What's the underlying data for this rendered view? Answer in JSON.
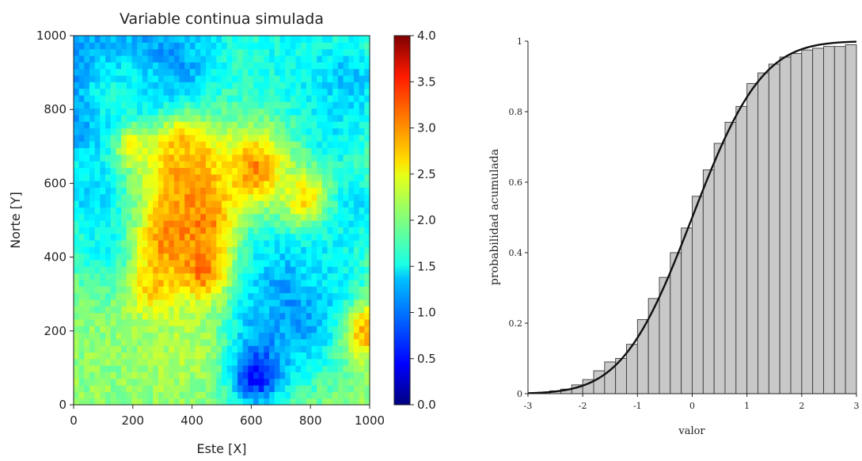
{
  "chart_data": [
    {
      "type": "heatmap",
      "title": "Variable continua simulada",
      "xlabel": "Este [X]",
      "ylabel": "Norte [Y]",
      "xlim": [
        0,
        1000
      ],
      "ylim": [
        0,
        1000
      ],
      "x_ticks": [
        "0",
        "200",
        "400",
        "600",
        "800",
        "1000"
      ],
      "y_ticks": [
        "0",
        "200",
        "400",
        "600",
        "800",
        "1000"
      ],
      "colorbar": {
        "colormap": "jet",
        "range": [
          0.0,
          4.0
        ],
        "ticks": [
          "0.0",
          "0.5",
          "1.0",
          "1.5",
          "2.0",
          "2.5",
          "3.0",
          "3.5",
          "4.0"
        ]
      },
      "base_value": 2.05,
      "features": [
        {
          "x": 60,
          "y": 910,
          "value": 0.75,
          "radius": 110
        },
        {
          "x": 10,
          "y": 780,
          "value": 0.85,
          "radius": 90
        },
        {
          "x": 330,
          "y": 935,
          "value": 0.8,
          "radius": 120
        },
        {
          "x": 150,
          "y": 965,
          "value": 1.1,
          "radius": 90
        },
        {
          "x": 240,
          "y": 860,
          "value": 1.3,
          "radius": 80
        },
        {
          "x": 130,
          "y": 840,
          "value": 1.55,
          "radius": 90
        },
        {
          "x": 400,
          "y": 980,
          "value": 1.2,
          "radius": 60
        },
        {
          "x": 730,
          "y": 930,
          "value": 1.55,
          "radius": 180
        },
        {
          "x": 930,
          "y": 870,
          "value": 1.25,
          "radius": 90
        },
        {
          "x": 880,
          "y": 740,
          "value": 1.45,
          "radius": 80
        },
        {
          "x": 70,
          "y": 560,
          "value": 1.3,
          "radius": 90
        },
        {
          "x": 120,
          "y": 430,
          "value": 1.5,
          "radius": 90
        },
        {
          "x": 560,
          "y": 470,
          "value": 1.55,
          "radius": 130
        },
        {
          "x": 420,
          "y": 420,
          "value": 1.5,
          "radius": 70
        },
        {
          "x": 760,
          "y": 280,
          "value": 0.9,
          "radius": 120
        },
        {
          "x": 640,
          "y": 170,
          "value": 1.2,
          "radius": 110
        },
        {
          "x": 610,
          "y": 80,
          "value": 0.5,
          "radius": 55
        },
        {
          "x": 860,
          "y": 380,
          "value": 1.45,
          "radius": 90
        },
        {
          "x": 950,
          "y": 540,
          "value": 1.4,
          "radius": 70
        },
        {
          "x": 380,
          "y": 620,
          "value": 3.0,
          "radius": 90
        },
        {
          "x": 440,
          "y": 500,
          "value": 3.0,
          "radius": 80
        },
        {
          "x": 320,
          "y": 440,
          "value": 3.0,
          "radius": 75
        },
        {
          "x": 430,
          "y": 360,
          "value": 3.1,
          "radius": 65
        },
        {
          "x": 280,
          "y": 320,
          "value": 2.8,
          "radius": 60
        },
        {
          "x": 370,
          "y": 690,
          "value": 2.75,
          "radius": 60
        },
        {
          "x": 610,
          "y": 640,
          "value": 2.95,
          "radius": 75
        },
        {
          "x": 780,
          "y": 560,
          "value": 2.6,
          "radius": 50
        },
        {
          "x": 200,
          "y": 700,
          "value": 2.5,
          "radius": 40
        },
        {
          "x": 990,
          "y": 200,
          "value": 2.85,
          "radius": 50
        },
        {
          "x": 380,
          "y": 160,
          "value": 2.2,
          "radius": 90
        }
      ]
    },
    {
      "type": "bar",
      "xlabel": "valor",
      "ylabel": "probabilidad acumulada",
      "xlim": [
        -3,
        3
      ],
      "ylim": [
        0,
        1
      ],
      "x_ticks": [
        "-3",
        "-2",
        "-1",
        "0",
        "1",
        "2",
        "3"
      ],
      "y_ticks": [
        "0",
        "0.2",
        "0.4",
        "0.6",
        "0.8",
        "1"
      ],
      "bin_width": 0.2,
      "bin_starts": [
        -3.0,
        -2.8,
        -2.6,
        -2.4,
        -2.2,
        -2.0,
        -1.8,
        -1.6,
        -1.4,
        -1.2,
        -1.0,
        -0.8,
        -0.6,
        -0.4,
        -0.2,
        0.0,
        0.2,
        0.4,
        0.6,
        0.8,
        1.0,
        1.2,
        1.4,
        1.6,
        1.8,
        2.0,
        2.2,
        2.4,
        2.6,
        2.8
      ],
      "values": [
        0.001,
        0.004,
        0.008,
        0.013,
        0.025,
        0.04,
        0.065,
        0.09,
        0.1,
        0.14,
        0.21,
        0.27,
        0.33,
        0.4,
        0.47,
        0.56,
        0.635,
        0.71,
        0.77,
        0.815,
        0.88,
        0.91,
        0.935,
        0.955,
        0.965,
        0.975,
        0.98,
        0.985,
        0.985,
        0.99
      ],
      "curve": "normal CDF, mean 0, sd 1"
    }
  ]
}
